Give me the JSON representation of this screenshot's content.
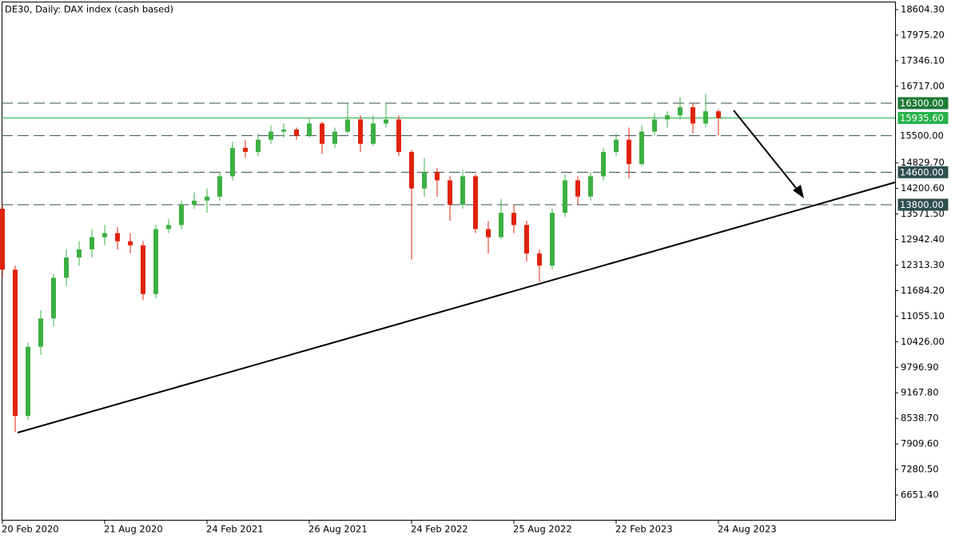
{
  "chart_data": {
    "type": "candlestick",
    "title": "DE30, Daily:  DAX index (cash based)",
    "up_color": "#3cb043",
    "down_color": "#e0230c",
    "categories": [
      "20 Feb 2020",
      null,
      null,
      null,
      null,
      null,
      null,
      null,
      "21 Aug 2020",
      null,
      null,
      null,
      null,
      null,
      null,
      null,
      "24 Feb 2021",
      null,
      null,
      null,
      null,
      null,
      null,
      null,
      "26 Aug 2021",
      null,
      null,
      null,
      null,
      null,
      null,
      null,
      "24 Feb 2022",
      null,
      null,
      null,
      null,
      null,
      null,
      null,
      "25 Aug 2022",
      null,
      null,
      null,
      null,
      null,
      null,
      null,
      "22 Feb 2023",
      null,
      null,
      null,
      null,
      null,
      null,
      null,
      "24 Aug 2023"
    ],
    "ohlc": [
      [
        13700,
        13800,
        12000,
        12200
      ],
      [
        12200,
        12300,
        8200,
        8600
      ],
      [
        8600,
        10400,
        8500,
        10300
      ],
      [
        10300,
        11200,
        10100,
        11000
      ],
      [
        11000,
        12100,
        10800,
        12000
      ],
      [
        12000,
        12700,
        11800,
        12500
      ],
      [
        12500,
        12900,
        12300,
        12700
      ],
      [
        12700,
        13200,
        12500,
        13000
      ],
      [
        13000,
        13300,
        12800,
        13100
      ],
      [
        13100,
        13250,
        12700,
        12900
      ],
      [
        12900,
        13100,
        12600,
        12800
      ],
      [
        12800,
        12900,
        11450,
        11600
      ],
      [
        11600,
        13300,
        11500,
        13200
      ],
      [
        13200,
        13450,
        13100,
        13300
      ],
      [
        13300,
        13900,
        13200,
        13800
      ],
      [
        13800,
        14100,
        13700,
        13900
      ],
      [
        13900,
        14200,
        13600,
        14000
      ],
      [
        14000,
        14600,
        13900,
        14500
      ],
      [
        14500,
        15350,
        14400,
        15200
      ],
      [
        15200,
        15400,
        14950,
        15100
      ],
      [
        15100,
        15550,
        15000,
        15400
      ],
      [
        15400,
        15750,
        15300,
        15600
      ],
      [
        15600,
        15800,
        15450,
        15650
      ],
      [
        15650,
        15700,
        15400,
        15500
      ],
      [
        15500,
        15950,
        15450,
        15800
      ],
      [
        15800,
        15850,
        15050,
        15300
      ],
      [
        15300,
        15700,
        15200,
        15600
      ],
      [
        15600,
        16290,
        15550,
        15900
      ],
      [
        15900,
        16000,
        15100,
        15300
      ],
      [
        15300,
        16000,
        15250,
        15800
      ],
      [
        15800,
        16280,
        15700,
        15900
      ],
      [
        15900,
        16000,
        15000,
        15100
      ],
      [
        15100,
        15150,
        12450,
        14200
      ],
      [
        14200,
        14950,
        14000,
        14600
      ],
      [
        14600,
        14700,
        14000,
        14400
      ],
      [
        14400,
        14500,
        13400,
        13800
      ],
      [
        13800,
        14650,
        13700,
        14500
      ],
      [
        14500,
        14550,
        13100,
        13200
      ],
      [
        13200,
        13400,
        12600,
        13000
      ],
      [
        13000,
        13950,
        12950,
        13600
      ],
      [
        13600,
        13800,
        13100,
        13300
      ],
      [
        13300,
        13400,
        12400,
        12600
      ],
      [
        12600,
        12700,
        11900,
        12300
      ],
      [
        12300,
        13700,
        12200,
        13600
      ],
      [
        13600,
        14550,
        13500,
        14400
      ],
      [
        14400,
        14500,
        13800,
        14000
      ],
      [
        14000,
        14600,
        13900,
        14500
      ],
      [
        14500,
        15200,
        14400,
        15100
      ],
      [
        15100,
        15550,
        15000,
        15400
      ],
      [
        15400,
        15700,
        14450,
        14800
      ],
      [
        14800,
        15750,
        14750,
        15600
      ],
      [
        15600,
        16050,
        15500,
        15900
      ],
      [
        15900,
        16100,
        15700,
        16000
      ],
      [
        16000,
        16450,
        15900,
        16200
      ],
      [
        16200,
        16300,
        15550,
        15800
      ],
      [
        15800,
        16530,
        15700,
        16100
      ],
      [
        16100,
        16150,
        15500,
        15935.6
      ]
    ],
    "ylim": [
      6021.3,
      18801.2
    ],
    "yticks": [
      {
        "value": 18604.3,
        "label": "18604.30"
      },
      {
        "value": 17975.2,
        "label": "17975.20"
      },
      {
        "value": 17346.1,
        "label": "17346.10"
      },
      {
        "value": 16717,
        "label": "16717.00"
      },
      {
        "value": 14829.7,
        "label": "14829.70"
      },
      {
        "value": 14200.6,
        "label": "14200.60"
      },
      {
        "value": 13571.5,
        "label": "13571.50"
      },
      {
        "value": 12942.4,
        "label": "12942.40"
      },
      {
        "value": 12313.3,
        "label": "12313.30"
      },
      {
        "value": 11684.2,
        "label": "11684.20"
      },
      {
        "value": 11055.1,
        "label": "11055.10"
      },
      {
        "value": 10426,
        "label": "10426.00"
      },
      {
        "value": 9796.9,
        "label": "9796.90"
      },
      {
        "value": 9167.8,
        "label": "9167.80"
      },
      {
        "value": 8538.7,
        "label": "8538.70"
      },
      {
        "value": 7909.6,
        "label": "7909.60"
      },
      {
        "value": 7280.5,
        "label": "7280.50"
      },
      {
        "value": 6651.4,
        "label": "6651.40"
      }
    ],
    "grid": false,
    "levels": [
      {
        "value": 16300,
        "label": "16300.00",
        "style": "dashed",
        "color": "#1e7a34",
        "text_color": "#ffffff"
      },
      {
        "value": 15935.6,
        "label": "15935.60",
        "style": "solid",
        "color": "#26b34a",
        "text_color": "#ffffff"
      },
      {
        "value": 15500,
        "label": "15500.00",
        "style": "dashed",
        "color": "#ffffff",
        "text_color": "#000000"
      },
      {
        "value": 14600,
        "label": "14600.00",
        "style": "dashed",
        "color": "#2f4f4f",
        "text_color": "#ffffff"
      },
      {
        "value": 13800,
        "label": "13800.00",
        "style": "dashed",
        "color": "#2f4f4f",
        "text_color": "#ffffff"
      }
    ]
  }
}
